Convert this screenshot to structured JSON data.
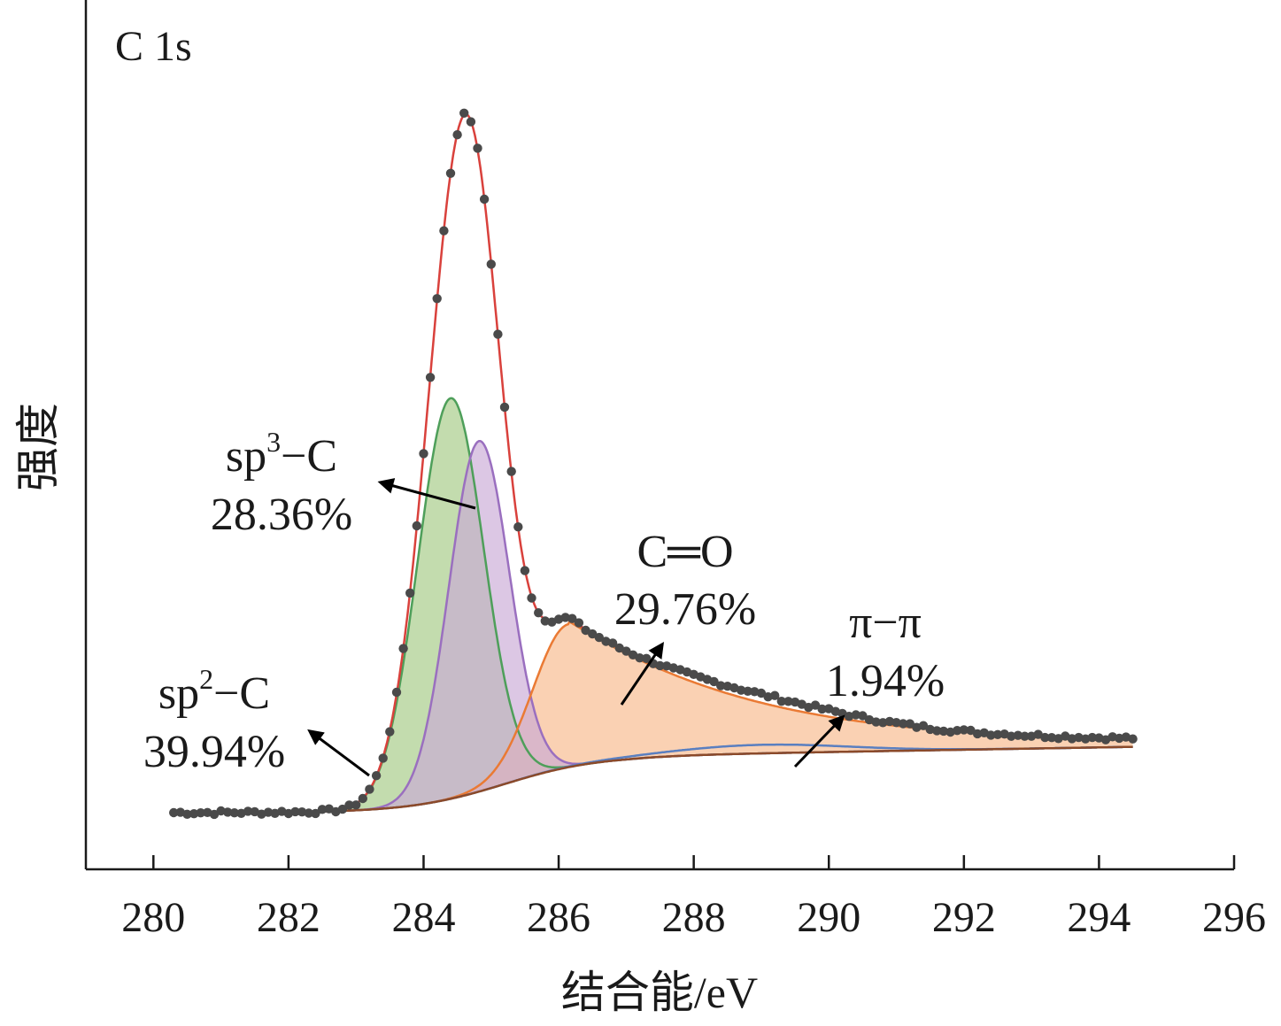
{
  "chart_data": {
    "type": "line",
    "title": "",
    "panel_label": "C 1s",
    "xlabel": "结合能/eV",
    "ylabel": "强度",
    "xlim": [
      279,
      296
    ],
    "ylim": [
      0,
      1.05
    ],
    "x_ticks": [
      280,
      282,
      284,
      286,
      288,
      290,
      292,
      294,
      296
    ],
    "y_ticks_shown": false,
    "grid": false,
    "colors": {
      "data_points": "#4a4a4a",
      "envelope": "#d9413c",
      "sp2_fill": "#b9d6a0",
      "sp2_line": "#4e9f5a",
      "sp3_fill": "#c9a9d6",
      "sp3_line": "#9a6fbf",
      "co_fill": "#f8c29a",
      "co_line": "#ea7a34",
      "pipi_line": "#5a7fc0",
      "background": "#8b4a2a"
    },
    "series": [
      {
        "name": "sp2-C",
        "peak_center": 284.4,
        "peak_height": 0.56,
        "fwhm": 1.1
      },
      {
        "name": "sp3-C",
        "peak_center": 284.8,
        "peak_height": 0.49,
        "fwhm": 1.1
      },
      {
        "name": "C=O",
        "peak_center": 286.2,
        "peak_height": 0.2,
        "shape": "asymmetric tail"
      },
      {
        "name": "π-π",
        "peak_center": 289.0,
        "peak_height": 0.01
      }
    ],
    "background_range": [
      0.0,
      0.08
    ],
    "annotations": [
      {
        "label": "sp",
        "sup": "3",
        "tail": "−C",
        "percent": "28.36%"
      },
      {
        "label": "C═O",
        "percent": "29.76%"
      },
      {
        "label": "π−π",
        "percent": "1.94%"
      },
      {
        "label": "sp",
        "sup": "2",
        "tail": "−C",
        "percent": "39.94%"
      }
    ],
    "x_range_data": [
      280.3,
      294.5
    ]
  }
}
